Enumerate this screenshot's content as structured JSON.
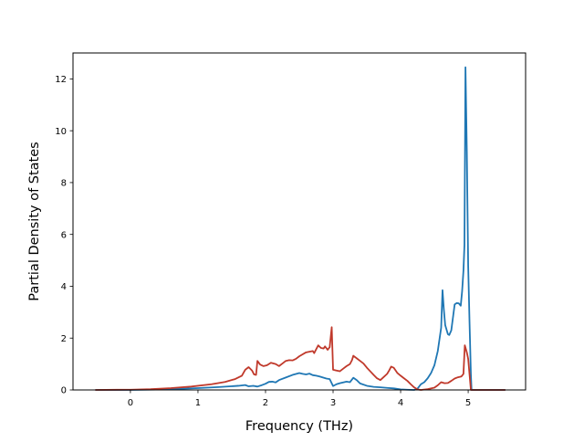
{
  "chart_data": {
    "type": "line",
    "title": "",
    "xlabel": "Frequency (THz)",
    "ylabel": "Partial Density of States",
    "xlim": [
      -0.85,
      5.85
    ],
    "ylim": [
      0,
      13
    ],
    "x_ticks": [
      0,
      1,
      2,
      3,
      4,
      5
    ],
    "y_ticks": [
      0,
      2,
      4,
      6,
      8,
      10,
      12
    ],
    "x_tick_labels": [
      "0",
      "1",
      "2",
      "3",
      "4",
      "5"
    ],
    "y_tick_labels": [
      "0",
      "2",
      "4",
      "6",
      "8",
      "10",
      "12"
    ],
    "grid": false,
    "legend": "none",
    "series": [
      {
        "color": "#1f77b4",
        "points": [
          [
            -0.52,
            0.0
          ],
          [
            0.0,
            0.0
          ],
          [
            0.5,
            0.02
          ],
          [
            1.0,
            0.07
          ],
          [
            1.3,
            0.11
          ],
          [
            1.6,
            0.16
          ],
          [
            1.7,
            0.19
          ],
          [
            1.75,
            0.14
          ],
          [
            1.82,
            0.16
          ],
          [
            1.88,
            0.13
          ],
          [
            1.93,
            0.17
          ],
          [
            2.0,
            0.24
          ],
          [
            2.05,
            0.31
          ],
          [
            2.1,
            0.32
          ],
          [
            2.15,
            0.29
          ],
          [
            2.2,
            0.38
          ],
          [
            2.3,
            0.48
          ],
          [
            2.4,
            0.58
          ],
          [
            2.5,
            0.65
          ],
          [
            2.55,
            0.62
          ],
          [
            2.6,
            0.6
          ],
          [
            2.65,
            0.63
          ],
          [
            2.7,
            0.57
          ],
          [
            2.75,
            0.55
          ],
          [
            2.8,
            0.52
          ],
          [
            2.85,
            0.48
          ],
          [
            2.9,
            0.44
          ],
          [
            2.95,
            0.42
          ],
          [
            3.0,
            0.15
          ],
          [
            3.05,
            0.22
          ],
          [
            3.1,
            0.26
          ],
          [
            3.2,
            0.32
          ],
          [
            3.25,
            0.3
          ],
          [
            3.3,
            0.47
          ],
          [
            3.35,
            0.38
          ],
          [
            3.4,
            0.25
          ],
          [
            3.5,
            0.16
          ],
          [
            3.6,
            0.12
          ],
          [
            3.7,
            0.1
          ],
          [
            3.8,
            0.08
          ],
          [
            3.9,
            0.06
          ],
          [
            4.0,
            0.02
          ],
          [
            4.1,
            0.01
          ],
          [
            4.2,
            0.0
          ],
          [
            4.25,
            0.05
          ],
          [
            4.3,
            0.22
          ],
          [
            4.35,
            0.3
          ],
          [
            4.4,
            0.45
          ],
          [
            4.45,
            0.65
          ],
          [
            4.5,
            0.95
          ],
          [
            4.55,
            1.5
          ],
          [
            4.6,
            2.4
          ],
          [
            4.62,
            3.85
          ],
          [
            4.64,
            3.1
          ],
          [
            4.66,
            2.5
          ],
          [
            4.7,
            2.15
          ],
          [
            4.72,
            2.12
          ],
          [
            4.75,
            2.3
          ],
          [
            4.78,
            2.9
          ],
          [
            4.8,
            3.3
          ],
          [
            4.83,
            3.35
          ],
          [
            4.86,
            3.34
          ],
          [
            4.89,
            3.25
          ],
          [
            4.91,
            3.8
          ],
          [
            4.93,
            4.6
          ],
          [
            4.945,
            5.6
          ],
          [
            4.96,
            12.45
          ],
          [
            4.98,
            9.2
          ],
          [
            5.0,
            4.8
          ],
          [
            5.02,
            2.6
          ],
          [
            5.04,
            0.6
          ],
          [
            5.05,
            0.0
          ],
          [
            5.55,
            0.0
          ]
        ]
      },
      {
        "color": "#c0392b",
        "points": [
          [
            -0.52,
            0.0
          ],
          [
            0.0,
            0.01
          ],
          [
            0.3,
            0.03
          ],
          [
            0.6,
            0.07
          ],
          [
            0.9,
            0.13
          ],
          [
            1.2,
            0.22
          ],
          [
            1.4,
            0.31
          ],
          [
            1.55,
            0.42
          ],
          [
            1.65,
            0.55
          ],
          [
            1.7,
            0.78
          ],
          [
            1.75,
            0.88
          ],
          [
            1.8,
            0.75
          ],
          [
            1.83,
            0.6
          ],
          [
            1.86,
            0.58
          ],
          [
            1.88,
            1.12
          ],
          [
            1.92,
            0.98
          ],
          [
            1.97,
            0.92
          ],
          [
            2.02,
            0.95
          ],
          [
            2.08,
            1.05
          ],
          [
            2.15,
            1.0
          ],
          [
            2.2,
            0.92
          ],
          [
            2.25,
            1.02
          ],
          [
            2.3,
            1.12
          ],
          [
            2.35,
            1.15
          ],
          [
            2.4,
            1.14
          ],
          [
            2.45,
            1.2
          ],
          [
            2.5,
            1.3
          ],
          [
            2.6,
            1.45
          ],
          [
            2.7,
            1.5
          ],
          [
            2.72,
            1.42
          ],
          [
            2.78,
            1.72
          ],
          [
            2.82,
            1.62
          ],
          [
            2.86,
            1.6
          ],
          [
            2.88,
            1.68
          ],
          [
            2.92,
            1.55
          ],
          [
            2.95,
            1.65
          ],
          [
            2.98,
            2.42
          ],
          [
            3.0,
            0.78
          ],
          [
            3.05,
            0.75
          ],
          [
            3.1,
            0.72
          ],
          [
            3.15,
            0.82
          ],
          [
            3.2,
            0.92
          ],
          [
            3.25,
            1.0
          ],
          [
            3.28,
            1.15
          ],
          [
            3.3,
            1.32
          ],
          [
            3.35,
            1.22
          ],
          [
            3.4,
            1.12
          ],
          [
            3.45,
            1.02
          ],
          [
            3.5,
            0.86
          ],
          [
            3.55,
            0.72
          ],
          [
            3.6,
            0.58
          ],
          [
            3.65,
            0.45
          ],
          [
            3.7,
            0.38
          ],
          [
            3.75,
            0.5
          ],
          [
            3.8,
            0.62
          ],
          [
            3.83,
            0.75
          ],
          [
            3.86,
            0.9
          ],
          [
            3.9,
            0.85
          ],
          [
            3.95,
            0.66
          ],
          [
            4.0,
            0.55
          ],
          [
            4.05,
            0.45
          ],
          [
            4.1,
            0.35
          ],
          [
            4.15,
            0.22
          ],
          [
            4.2,
            0.1
          ],
          [
            4.25,
            0.02
          ],
          [
            4.3,
            0.0
          ],
          [
            4.4,
            0.03
          ],
          [
            4.5,
            0.09
          ],
          [
            4.55,
            0.18
          ],
          [
            4.6,
            0.3
          ],
          [
            4.65,
            0.26
          ],
          [
            4.7,
            0.27
          ],
          [
            4.75,
            0.35
          ],
          [
            4.8,
            0.44
          ],
          [
            4.85,
            0.49
          ],
          [
            4.9,
            0.52
          ],
          [
            4.93,
            0.62
          ],
          [
            4.95,
            1.72
          ],
          [
            4.98,
            1.45
          ],
          [
            5.0,
            1.2
          ],
          [
            5.02,
            0.6
          ],
          [
            5.04,
            0.0
          ],
          [
            5.55,
            0.0
          ]
        ]
      }
    ]
  }
}
